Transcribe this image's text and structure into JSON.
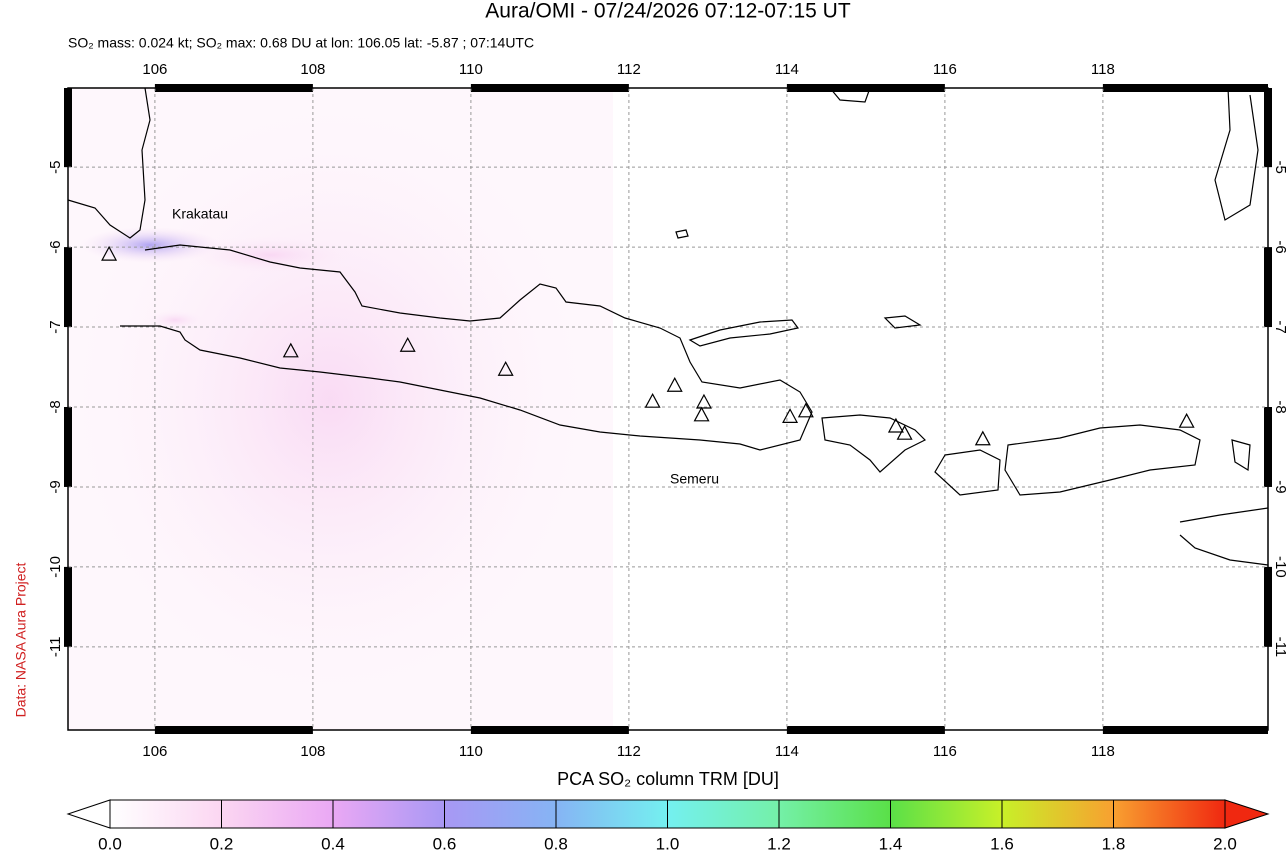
{
  "header": {
    "title": "Aura/OMI - 07/24/2026 07:12-07:15 UT",
    "subtitle": "SO₂ mass: 0.024 kt; SO₂ max: 0.68 DU at lon: 106.05 lat: -5.87 ; 07:14UTC"
  },
  "map": {
    "xlim": [
      104.9,
      120.09
    ],
    "ylim": [
      -12.04,
      -4.01
    ],
    "xticks": [
      106,
      108,
      110,
      112,
      114,
      116,
      118
    ],
    "yticks": [
      -5,
      -6,
      -7,
      -8,
      -9,
      -10,
      -11
    ],
    "volcano_labels": [
      "Krakatau",
      "Semeru"
    ],
    "volcanoes": {
      "lon": [
        105.42,
        107.72,
        109.2,
        110.44,
        112.3,
        112.58,
        112.95,
        112.92,
        114.04,
        114.24,
        115.38,
        115.49,
        116.48,
        119.06
      ],
      "lat": [
        -6.1,
        -7.31,
        -7.24,
        -7.54,
        -7.94,
        -7.74,
        -7.95,
        -8.11,
        -8.13,
        -8.06,
        -8.25,
        -8.34,
        -8.41,
        -8.19
      ]
    }
  },
  "colorbar": {
    "label": "PCA SO₂ column TRM [DU]",
    "lim": [
      0,
      2
    ],
    "ticks": [
      {
        "value": 0,
        "label": "0.0"
      },
      {
        "value": 0.2,
        "label": "0.2"
      },
      {
        "value": 0.4,
        "label": "0.4"
      },
      {
        "value": 0.6,
        "label": "0.6"
      },
      {
        "value": 0.8,
        "label": "0.8"
      },
      {
        "value": 1,
        "label": "1.0"
      },
      {
        "value": 1.2,
        "label": "1.2"
      },
      {
        "value": 1.4,
        "label": "1.4"
      },
      {
        "value": 1.6,
        "label": "1.6"
      },
      {
        "value": 1.8,
        "label": "1.8"
      },
      {
        "value": 2,
        "label": "2.0"
      }
    ]
  },
  "credit": "Data: NASA Aura Project"
}
